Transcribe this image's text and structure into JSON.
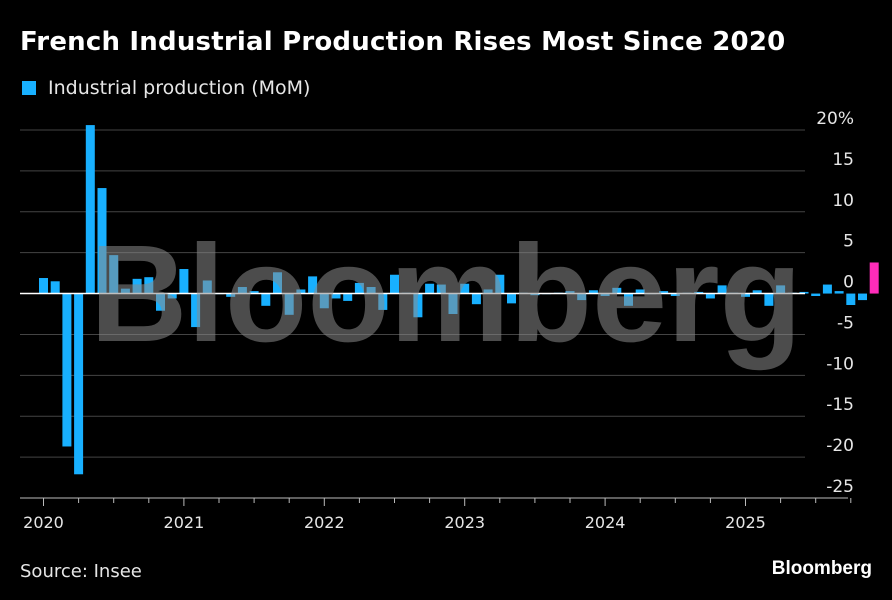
{
  "title": "French Industrial Production Rises Most Since 2020",
  "legend": {
    "label": "Industrial production (MoM)",
    "color": "#18b0ff"
  },
  "source": "Source: Insee",
  "brand": "Bloomberg",
  "watermark": "Bloomberg",
  "colors": {
    "bar": "#18b0ff",
    "highlight": "#ff2cb9",
    "grid": "#444444",
    "background": "#000000"
  },
  "chart_data": {
    "type": "bar",
    "title": "French Industrial Production Rises Most Since 2020",
    "ylabel": "",
    "xlabel": "",
    "ylim": [
      -25,
      20
    ],
    "y_ticks": [
      {
        "value": 20,
        "label": "20%"
      },
      {
        "value": 15,
        "label": "15"
      },
      {
        "value": 10,
        "label": "10"
      },
      {
        "value": 5,
        "label": "5"
      },
      {
        "value": 0,
        "label": "0"
      },
      {
        "value": -5,
        "label": "-5"
      },
      {
        "value": -10,
        "label": "-10"
      },
      {
        "value": -15,
        "label": "-15"
      },
      {
        "value": -20,
        "label": "-20"
      },
      {
        "value": -25,
        "label": "-25"
      }
    ],
    "x_ticks": [
      "2020",
      "2021",
      "2022",
      "2023",
      "2024",
      "2025"
    ],
    "grid": true,
    "legend_position": "top-left",
    "series": [
      {
        "name": "Industrial production (MoM)",
        "start": "2020-01",
        "highlight_last": true,
        "values": [
          1.9,
          1.5,
          -18.7,
          -22.1,
          20.6,
          12.9,
          4.7,
          0.6,
          1.8,
          2.0,
          -2.1,
          -0.6,
          3.0,
          -4.1,
          1.6,
          0.0,
          -0.4,
          0.8,
          0.3,
          -1.5,
          2.6,
          -2.6,
          0.5,
          2.1,
          -1.8,
          -0.6,
          -0.9,
          1.3,
          0.8,
          -2.0,
          2.3,
          0.1,
          -2.9,
          1.2,
          1.1,
          -2.5,
          1.2,
          -1.3,
          0.5,
          2.3,
          -1.2,
          0.1,
          -0.2,
          0.0,
          0.1,
          0.3,
          -0.8,
          0.4,
          -0.3,
          0.7,
          -1.5,
          0.5,
          0.0,
          0.3,
          -0.3,
          0.1,
          0.2,
          -0.6,
          1.0,
          0.1,
          -0.4,
          0.4,
          -1.5,
          1.0,
          0.1,
          0.2,
          -0.3,
          1.1,
          0.3,
          -1.4,
          -0.8,
          3.8
        ]
      }
    ]
  }
}
